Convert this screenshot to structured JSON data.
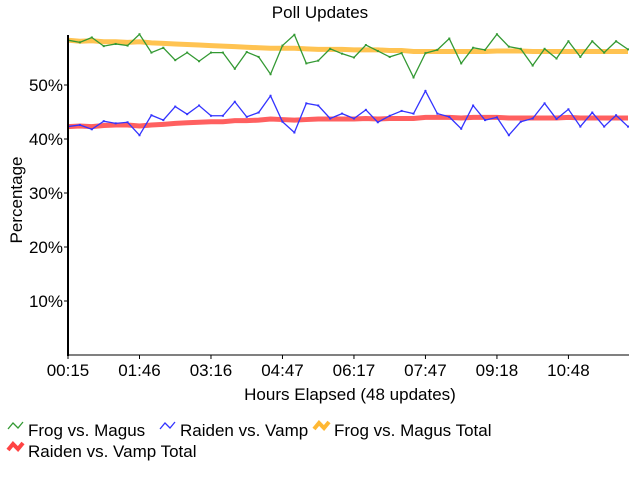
{
  "chart_data": {
    "type": "line",
    "title": "Poll Updates",
    "xlabel": "Hours Elapsed (48 updates)",
    "ylabel": "Percentage",
    "ylim": [
      0,
      60
    ],
    "yticks": [
      {
        "v": 10,
        "label": "10%"
      },
      {
        "v": 20,
        "label": "20%"
      },
      {
        "v": 30,
        "label": "30%"
      },
      {
        "v": 40,
        "label": "40%"
      },
      {
        "v": 50,
        "label": "50%"
      }
    ],
    "xticks": [
      {
        "i": 0,
        "label": "00:15"
      },
      {
        "i": 6,
        "label": "01:46"
      },
      {
        "i": 12,
        "label": "03:16"
      },
      {
        "i": 18,
        "label": "04:47"
      },
      {
        "i": 24,
        "label": "06:17"
      },
      {
        "i": 30,
        "label": "07:47"
      },
      {
        "i": 36,
        "label": "09:18"
      },
      {
        "i": 42,
        "label": "10:48"
      }
    ],
    "legend_position": "bottom",
    "series": [
      {
        "name": "Frog vs. Magus",
        "color": "#339933",
        "width": 1.3,
        "values": [
          58.3,
          57.9,
          58.8,
          57.2,
          57.6,
          57.3,
          59.4,
          56.0,
          56.9,
          54.6,
          56.0,
          54.4,
          56.0,
          56.0,
          53.0,
          56.1,
          55.2,
          52.0,
          57.3,
          59.3,
          54.0,
          54.5,
          56.7,
          55.8,
          55.1,
          57.4,
          56.3,
          55.2,
          55.9,
          51.4,
          55.9,
          56.5,
          58.6,
          54.0,
          56.9,
          56.5,
          59.4,
          57.1,
          56.7,
          53.6,
          56.7,
          54.9,
          58.1,
          55.2,
          58.1,
          56.0,
          58.1,
          56.6
        ]
      },
      {
        "name": "Raiden vs. Vamp",
        "color": "#3333ff",
        "width": 1.3,
        "values": [
          42.3,
          42.6,
          41.8,
          43.3,
          42.9,
          43.1,
          40.7,
          44.4,
          43.5,
          46.0,
          44.6,
          46.2,
          44.3,
          44.3,
          46.9,
          44.1,
          44.9,
          48.0,
          43.2,
          41.2,
          46.6,
          46.2,
          43.8,
          44.7,
          43.8,
          45.4,
          43.1,
          44.3,
          45.2,
          44.7,
          48.9,
          44.7,
          44.1,
          41.9,
          46.2,
          43.5,
          44.0,
          40.7,
          43.2,
          43.8,
          46.6,
          43.7,
          45.5,
          42.3,
          44.9,
          42.3,
          44.4,
          42.3
        ]
      },
      {
        "name": "Frog vs. Magus Total",
        "color": "#ffb833",
        "width": 5,
        "values": [
          58.3,
          58.1,
          58.2,
          58.0,
          58.0,
          57.9,
          58.0,
          57.8,
          57.7,
          57.6,
          57.5,
          57.4,
          57.3,
          57.2,
          57.1,
          57.0,
          56.9,
          56.8,
          56.8,
          56.8,
          56.7,
          56.6,
          56.6,
          56.6,
          56.5,
          56.5,
          56.5,
          56.4,
          56.4,
          56.2,
          56.2,
          56.2,
          56.2,
          56.2,
          56.2,
          56.2,
          56.3,
          56.3,
          56.3,
          56.2,
          56.2,
          56.2,
          56.2,
          56.2,
          56.2,
          56.2,
          56.2,
          56.2
        ]
      },
      {
        "name": "Raiden vs. Vamp Total",
        "color": "#ff4444",
        "width": 5,
        "values": [
          42.3,
          42.4,
          42.3,
          42.5,
          42.6,
          42.6,
          42.4,
          42.6,
          42.7,
          42.9,
          43.0,
          43.1,
          43.2,
          43.2,
          43.4,
          43.4,
          43.5,
          43.7,
          43.6,
          43.5,
          43.6,
          43.7,
          43.7,
          43.7,
          43.7,
          43.8,
          43.7,
          43.8,
          43.8,
          43.8,
          44.0,
          44.0,
          44.0,
          43.9,
          44.0,
          44.0,
          44.0,
          43.9,
          43.9,
          43.9,
          43.9,
          43.9,
          44.0,
          43.9,
          43.9,
          43.9,
          43.9,
          43.9
        ]
      }
    ]
  }
}
